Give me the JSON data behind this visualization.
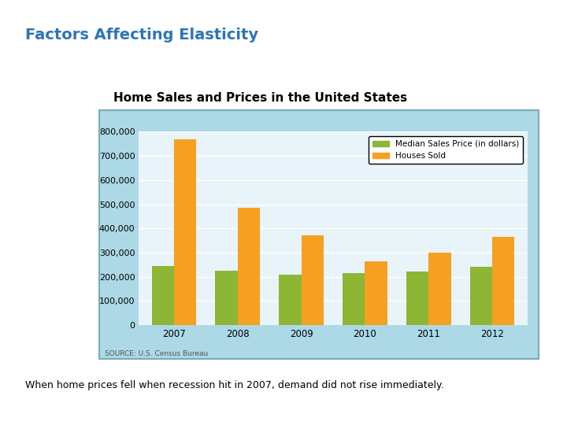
{
  "title_main": "Factors Affecting Elasticity",
  "title_main_color": "#2E75B6",
  "chart_title": "Home Sales and Prices in the United States",
  "years": [
    "2007",
    "2008",
    "2009",
    "2010",
    "2011",
    "2012"
  ],
  "median_sales_price": [
    245000,
    225000,
    208000,
    215000,
    222000,
    240000
  ],
  "houses_sold": [
    770000,
    485000,
    370000,
    265000,
    300000,
    365000
  ],
  "color_green": "#8DB635",
  "color_orange": "#F5A020",
  "ylim": [
    0,
    800000
  ],
  "yticks": [
    0,
    100000,
    200000,
    300000,
    400000,
    500000,
    600000,
    700000,
    800000
  ],
  "legend_label_green": "Median Sales Price (in dollars)",
  "legend_label_orange": "Houses Sold",
  "source_text": "SOURCE: U.S. Census Bureau",
  "caption": "When home prices fell when recession hit in 2007, demand did not rise immediately.",
  "background_color": "#FFFFFF",
  "outer_box_color": "#ADD8E6",
  "inner_plot_color": "#E8F4FA",
  "title_main_fontsize": 14,
  "chart_title_fontsize": 11
}
